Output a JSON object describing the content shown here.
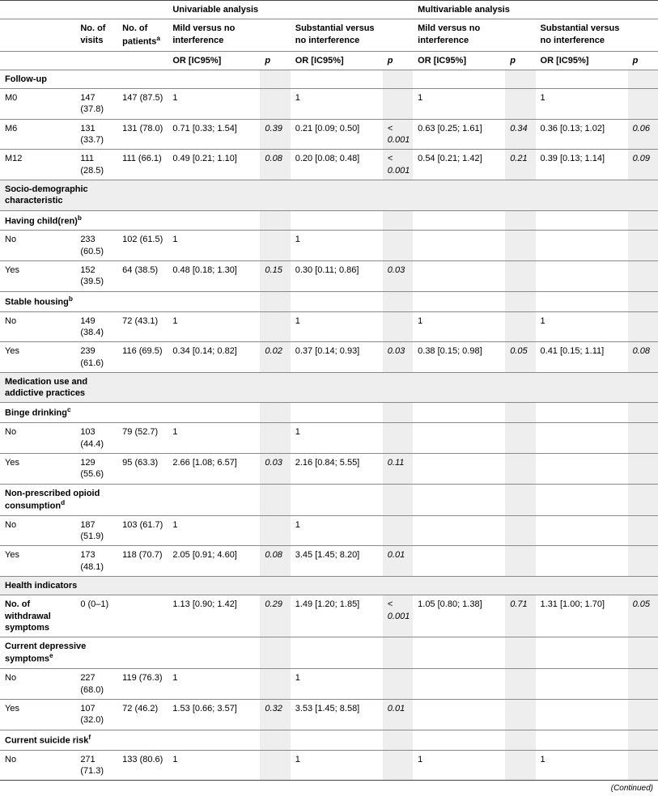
{
  "colors": {
    "shade": "#eeeeee",
    "border": "#888888"
  },
  "headers": {
    "no_visits": "No. of visits",
    "no_patients": "No. of patients",
    "no_patients_sup": "a",
    "univariable": "Univariable analysis",
    "multivariable": "Multivariable analysis",
    "mild": "Mild versus no interference",
    "substantial": "Substantial versus no interference",
    "or": "OR [IC95%]",
    "p": "p"
  },
  "sections": {
    "followup": "Follow-up",
    "socio": "Socio-demographic characteristic",
    "meduse": "Medication use and addictive practices",
    "health": "Health indicators"
  },
  "subheads": {
    "children": {
      "label": "Having child(ren)",
      "sup": "b"
    },
    "housing": {
      "label": "Stable housing",
      "sup": "b"
    },
    "binge": {
      "label": "Binge drinking",
      "sup": "c"
    },
    "opioid": {
      "label": "Non-prescribed opioid consumption",
      "sup": "d"
    },
    "withdraw": {
      "label": "No. of withdrawal symptoms"
    },
    "depress": {
      "label": "Current depressive symptoms",
      "sup": "e"
    },
    "suicide": {
      "label": "Current suicide risk",
      "sup": "f"
    }
  },
  "rows": {
    "m0": {
      "label": "M0",
      "visits": "147 (37.8)",
      "patients": "147 (87.5)",
      "u_mild_or": "1",
      "u_sub_or": "1",
      "m_mild_or": "1",
      "m_sub_or": "1"
    },
    "m6": {
      "label": "M6",
      "visits": "131 (33.7)",
      "patients": "131 (78.0)",
      "u_mild_or": "0.71 [0.33; 1.54]",
      "u_mild_p": "0.39",
      "u_sub_or": "0.21 [0.09; 0.50]",
      "u_sub_p": "< 0.001",
      "m_mild_or": "0.63 [0.25; 1.61]",
      "m_mild_p": "0.34",
      "m_sub_or": "0.36 [0.13; 1.02]",
      "m_sub_p": "0.06"
    },
    "m12": {
      "label": "M12",
      "visits": "111 (28.5)",
      "patients": "111 (66.1)",
      "u_mild_or": "0.49 [0.21; 1.10]",
      "u_mild_p": "0.08",
      "u_sub_or": "0.20 [0.08; 0.48]",
      "u_sub_p": "< 0.001",
      "m_mild_or": "0.54 [0.21; 1.42]",
      "m_mild_p": "0.21",
      "m_sub_or": "0.39 [0.13; 1.14]",
      "m_sub_p": "0.09"
    },
    "child_no": {
      "label": "No",
      "visits": "233 (60.5)",
      "patients": "102 (61.5)",
      "u_mild_or": "1",
      "u_sub_or": "1"
    },
    "child_yes": {
      "label": "Yes",
      "visits": "152 (39.5)",
      "patients": "64 (38.5)",
      "u_mild_or": "0.48 [0.18; 1.30]",
      "u_mild_p": "0.15",
      "u_sub_or": "0.30 [0.11; 0.86]",
      "u_sub_p": "0.03"
    },
    "house_no": {
      "label": "No",
      "visits": "149 (38.4)",
      "patients": "72 (43.1)",
      "u_mild_or": "1",
      "u_sub_or": "1",
      "m_mild_or": "1",
      "m_sub_or": "1"
    },
    "house_yes": {
      "label": "Yes",
      "visits": "239 (61.6)",
      "patients": "116 (69.5)",
      "u_mild_or": "0.34 [0.14; 0.82]",
      "u_mild_p": "0.02",
      "u_sub_or": "0.37 [0.14; 0.93]",
      "u_sub_p": "0.03",
      "m_mild_or": "0.38 [0.15; 0.98]",
      "m_mild_p": "0.05",
      "m_sub_or": "0.41 [0.15; 1.11]",
      "m_sub_p": "0.08"
    },
    "binge_no": {
      "label": "No",
      "visits": "103 (44.4)",
      "patients": "79 (52.7)",
      "u_mild_or": "1",
      "u_sub_or": "1"
    },
    "binge_yes": {
      "label": "Yes",
      "visits": "129 (55.6)",
      "patients": "95 (63.3)",
      "u_mild_or": "2.66 [1.08; 6.57]",
      "u_mild_p": "0.03",
      "u_sub_or": "2.16 [0.84; 5.55]",
      "u_sub_p": "0.11"
    },
    "opioid_no": {
      "label": "No",
      "visits": "187 (51.9)",
      "patients": "103 (61.7)",
      "u_mild_or": "1",
      "u_sub_or": "1"
    },
    "opioid_yes": {
      "label": "Yes",
      "visits": "173 (48.1)",
      "patients": "118 (70.7)",
      "u_mild_or": "2.05 [0.91; 4.60]",
      "u_mild_p": "0.08",
      "u_sub_or": "3.45 [1.45; 8.20]",
      "u_sub_p": "0.01"
    },
    "withdraw": {
      "visits": "0 (0–1)",
      "u_mild_or": "1.13 [0.90; 1.42]",
      "u_mild_p": "0.29",
      "u_sub_or": "1.49 [1.20; 1.85]",
      "u_sub_p": "< 0.001",
      "m_mild_or": "1.05 [0.80; 1.38]",
      "m_mild_p": "0.71",
      "m_sub_or": "1.31 [1.00; 1.70]",
      "m_sub_p": "0.05"
    },
    "depress_no": {
      "label": "No",
      "visits": "227 (68.0)",
      "patients": "119 (76.3)",
      "u_mild_or": "1",
      "u_sub_or": "1"
    },
    "depress_yes": {
      "label": "Yes",
      "visits": "107 (32.0)",
      "patients": "72 (46.2)",
      "u_mild_or": "1.53 [0.66; 3.57]",
      "u_mild_p": "0.32",
      "u_sub_or": "3.53 [1.45; 8.58]",
      "u_sub_p": "0.01"
    },
    "suicide_no": {
      "label": "No",
      "visits": "271 (71.3)",
      "patients": "133 (80.6)",
      "u_mild_or": "1",
      "u_sub_or": "1",
      "m_mild_or": "1",
      "m_sub_or": "1"
    }
  },
  "footer": "(Continued)"
}
